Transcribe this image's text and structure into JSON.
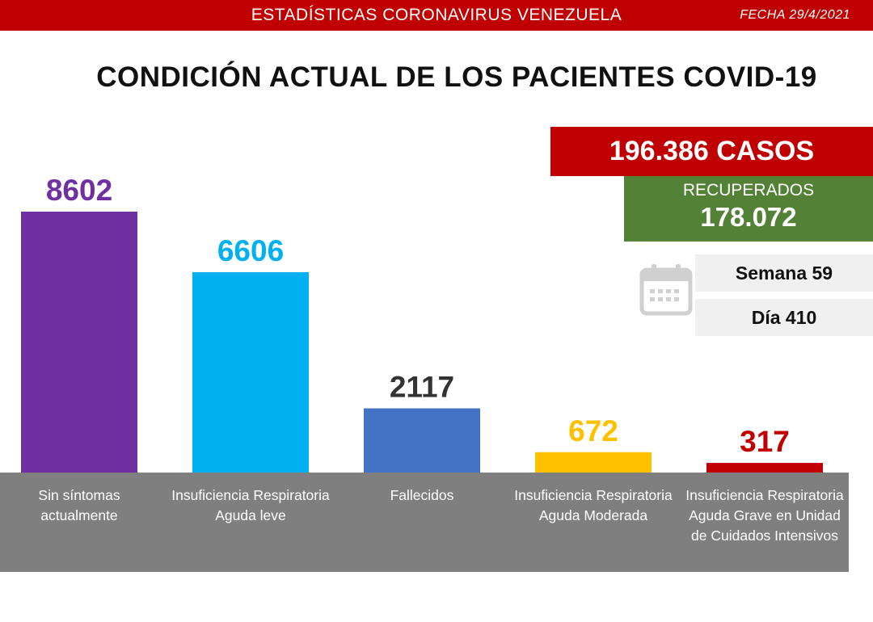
{
  "header": {
    "title": "ESTADÍSTICAS CORONAVIRUS VENEZUELA",
    "date": "FECHA 29/4/2021"
  },
  "summary": {
    "cases": "196.386 CASOS",
    "recovered_label": "RECUPERADOS",
    "recovered_value": "178.072",
    "week": "Semana 59",
    "day": "Día 410",
    "calendar_icon": "calendar-icon"
  },
  "colors": {
    "header": "#c00000",
    "recovered": "#538135",
    "label_band": "#7f7f7f"
  },
  "chart_data": {
    "type": "bar",
    "title": "CONDICIÓN ACTUAL DE LOS PACIENTES COVID-19",
    "categories": [
      "Sin síntomas actualmente",
      "Insuficiencia Respiratoria Aguda leve",
      "Fallecidos",
      "Insuficiencia Respiratoria Aguda Moderada",
      "Insuficiencia Respiratoria Aguda Grave en Unidad de Cuidados Intensivos"
    ],
    "values": [
      8602,
      6606,
      2117,
      672,
      317
    ],
    "colors": [
      "#7030a0",
      "#00b0f0",
      "#4472c4",
      "#ffc000",
      "#c00000"
    ],
    "label_colors": [
      "#7030a0",
      "#00b0f0",
      "#333333",
      "#ffc000",
      "#c00000"
    ],
    "xlabel": "",
    "ylabel": "",
    "ylim": [
      0,
      8602
    ],
    "grid": false,
    "legend": "none"
  }
}
